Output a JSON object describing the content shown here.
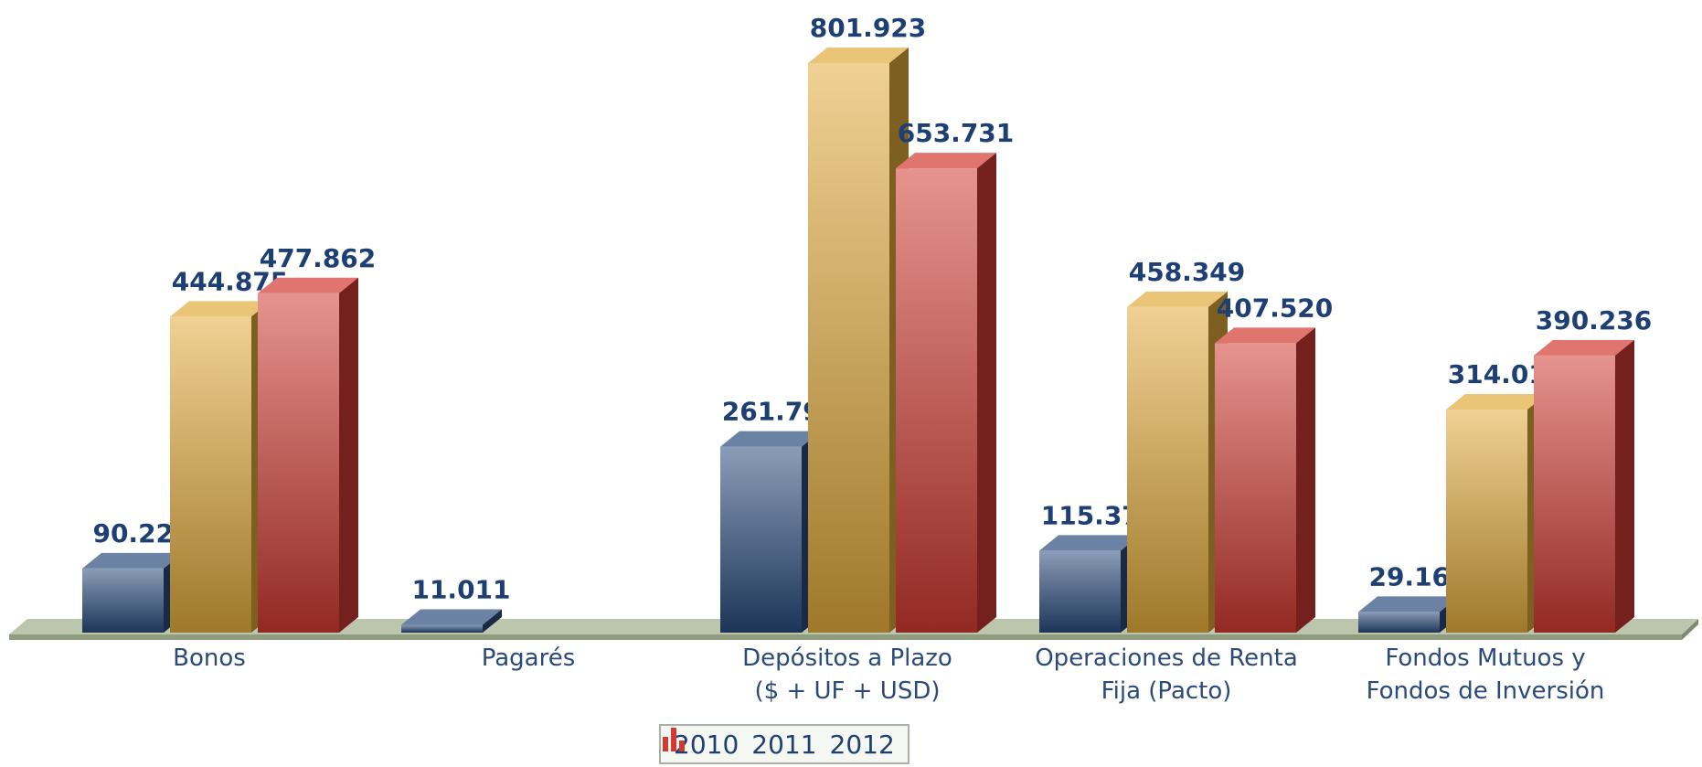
{
  "chart_data": {
    "type": "bar3d",
    "categories": [
      "Bonos",
      "Pagarés",
      "Depósitos a Plazo\n($ + UF + USD)",
      "Operaciones de Renta\nFija (Pacto)",
      "Fondos Mutuos y\nFondos de Inversión"
    ],
    "series": [
      {
        "name": "2010",
        "color": "#2b4c7e",
        "values": [
          90222,
          11011,
          261791,
          115372,
          29169
        ],
        "value_labels": [
          "90.222",
          "11.011",
          "261.791",
          "115.372",
          "29.169"
        ]
      },
      {
        "name": "2011",
        "color": "#e3ac3c",
        "values": [
          444875,
          null,
          801923,
          458349,
          314013
        ],
        "value_labels": [
          "444.875",
          null,
          "801.923",
          "458.349",
          "314.013"
        ]
      },
      {
        "name": "2012",
        "color": "#d23a32",
        "values": [
          477862,
          null,
          653731,
          407520,
          390236
        ],
        "value_labels": [
          "477.862",
          null,
          "653.731",
          "407.520",
          "390.236"
        ]
      }
    ],
    "legend": "bottom"
  }
}
